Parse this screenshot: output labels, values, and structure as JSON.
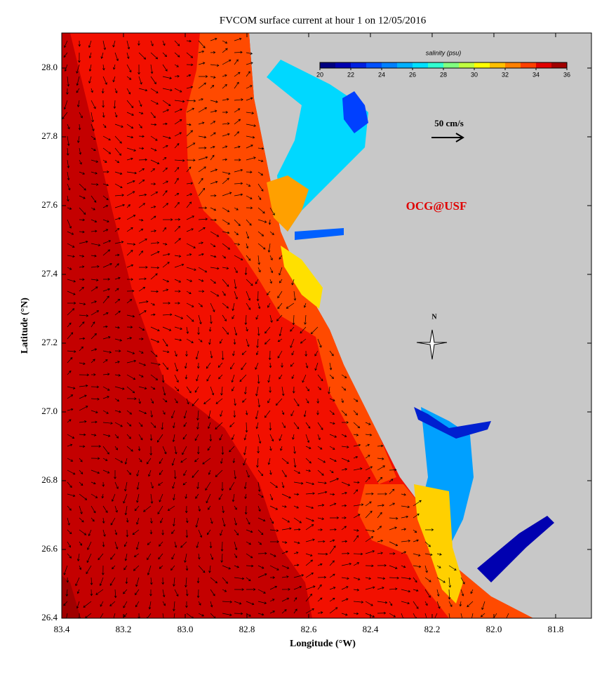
{
  "chart_data": {
    "type": "map",
    "title": "FVCOM surface current at hour 1 on 12/05/2016",
    "x_label": "Longitude (°W)",
    "y_label": "Latitude (°N)",
    "xlim": [
      83.4,
      81.684
    ],
    "ylim": [
      26.4,
      28.102
    ],
    "xticks": [
      83.4,
      83.2,
      {
        "value": 83,
        "label": "83.0"
      },
      82.8,
      82.6,
      82.4,
      82.2,
      {
        "value": 82,
        "label": "82.0"
      },
      81.8
    ],
    "yticks": [
      26.4,
      26.6,
      26.8,
      {
        "value": 27,
        "label": "27.0"
      },
      27.2,
      27.4,
      27.6,
      27.8,
      {
        "value": 28,
        "label": "28.0"
      }
    ],
    "colorbar": {
      "label": "salinity (psu)",
      "lim": [
        20,
        36
      ],
      "ticks": [
        20,
        22,
        24,
        26,
        28,
        30,
        32,
        34,
        36
      ],
      "colors": [
        "#000080",
        "#0000b0",
        "#0020e0",
        "#0050ff",
        "#0080ff",
        "#00b0ff",
        "#00e0ff",
        "#30ffd0",
        "#80ff80",
        "#c0ff40",
        "#ffff00",
        "#ffc000",
        "#ff8000",
        "#ff4000",
        "#e00000",
        "#a00000"
      ]
    },
    "scale_label": "50 cm/s",
    "credit": "OCG@USF",
    "north": "N"
  }
}
